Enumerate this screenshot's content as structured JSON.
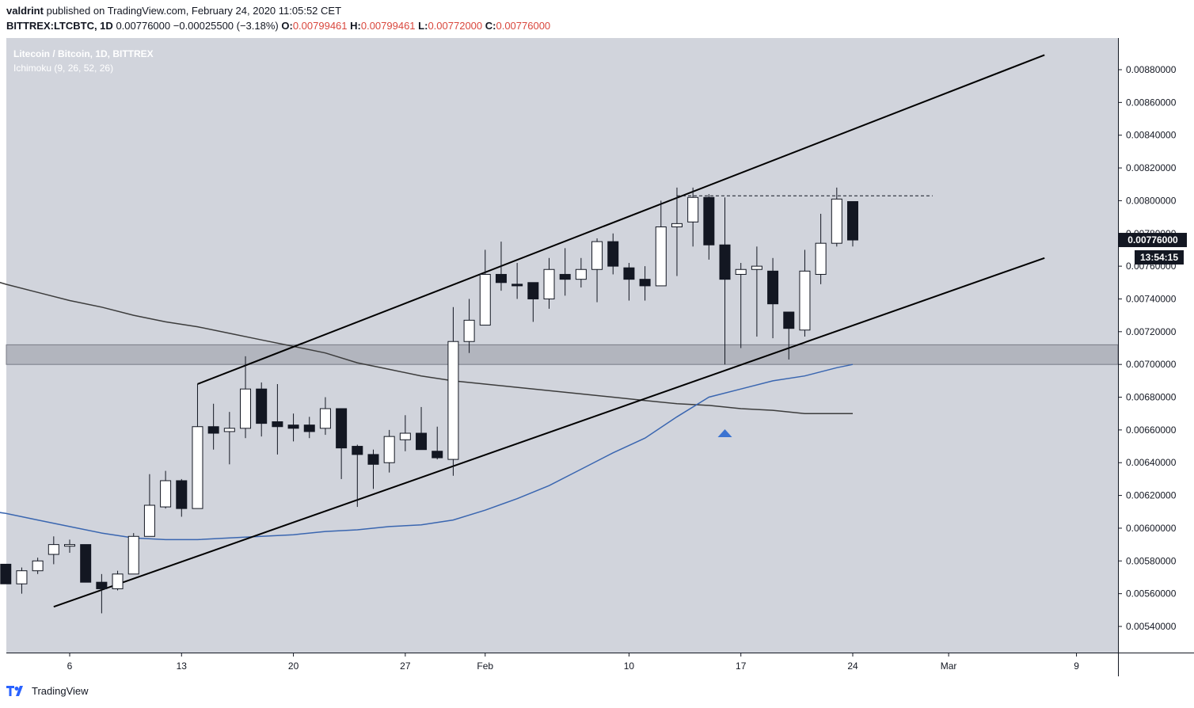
{
  "header": {
    "author": "valdrint",
    "published_text": "published on TradingView.com, February 24, 2020 11:05:52 CET",
    "symbol": "BITTREX:LTCBTC, 1D",
    "last": "0.00776000",
    "change": "−0.00025500 (−3.18%)",
    "o_label": "O:",
    "o_value": "0.00799461",
    "h_label": "H:",
    "h_value": "0.00799461",
    "l_label": "L:",
    "l_value": "0.00772000",
    "c_label": "C:",
    "c_value": "0.00776000"
  },
  "legend": {
    "title": "Litecoin / Bitcoin, 1D, BITTREX",
    "indicator": "Ichimoku (9, 26, 52, 26)"
  },
  "price_label": "0.00776000",
  "countdown": "13:54:15",
  "footer": {
    "brand": "TradingView"
  },
  "colors": {
    "background": "#d1d4dc",
    "bull_candle": "#ffffff",
    "bear_candle": "#131722",
    "ma_gray": "#3c3c3c",
    "ma_blue": "#3a66b0",
    "zone": "#b2b5be",
    "arrow": "#3b73d1"
  },
  "chart_data": {
    "type": "candlestick",
    "symbol": "LTCBTC",
    "ylim": [
      0.0053,
      0.009
    ],
    "y_ticks": [
      0.0054,
      0.0056,
      0.0058,
      0.006,
      0.0062,
      0.0064,
      0.0066,
      0.0068,
      0.007,
      0.0072,
      0.0074,
      0.0076,
      0.0078,
      0.008,
      0.0082,
      0.0084,
      0.0086,
      0.0088
    ],
    "y_tick_labels": [
      "0.00540000",
      "0.00560000",
      "0.00580000",
      "0.00600000",
      "0.00620000",
      "0.00640000",
      "0.00660000",
      "0.00680000",
      "0.00700000",
      "0.00720000",
      "0.00740000",
      "0.00760000",
      "0.00780000",
      "0.00800000",
      "0.00820000",
      "0.00840000",
      "0.00860000",
      "0.00880000"
    ],
    "x_ticks": [
      {
        "label": "6",
        "day": 6
      },
      {
        "label": "13",
        "day": 13
      },
      {
        "label": "20",
        "day": 20
      },
      {
        "label": "27",
        "day": 27
      },
      {
        "label": "Feb",
        "day": 32
      },
      {
        "label": "10",
        "day": 41
      },
      {
        "label": "17",
        "day": 48
      },
      {
        "label": "24",
        "day": 55
      },
      {
        "label": "Mar",
        "day": 61
      },
      {
        "label": "9",
        "day": 69
      }
    ],
    "candles": [
      {
        "day": 2,
        "o": 0.00578,
        "h": 0.00578,
        "l": 0.00566,
        "c": 0.00566
      },
      {
        "day": 3,
        "o": 0.00566,
        "h": 0.00576,
        "l": 0.0056,
        "c": 0.00574
      },
      {
        "day": 4,
        "o": 0.00574,
        "h": 0.00582,
        "l": 0.00572,
        "c": 0.0058
      },
      {
        "day": 5,
        "o": 0.00584,
        "h": 0.00595,
        "l": 0.00578,
        "c": 0.0059
      },
      {
        "day": 6,
        "o": 0.00589,
        "h": 0.00593,
        "l": 0.00585,
        "c": 0.0059
      },
      {
        "day": 7,
        "o": 0.0059,
        "h": 0.0059,
        "l": 0.00567,
        "c": 0.00567
      },
      {
        "day": 8,
        "o": 0.00567,
        "h": 0.00572,
        "l": 0.00548,
        "c": 0.00563
      },
      {
        "day": 9,
        "o": 0.00563,
        "h": 0.00574,
        "l": 0.00562,
        "c": 0.00572
      },
      {
        "day": 10,
        "o": 0.00572,
        "h": 0.00597,
        "l": 0.00572,
        "c": 0.00595
      },
      {
        "day": 11,
        "o": 0.00595,
        "h": 0.00633,
        "l": 0.00595,
        "c": 0.00614
      },
      {
        "day": 12,
        "o": 0.00613,
        "h": 0.00635,
        "l": 0.00612,
        "c": 0.00629
      },
      {
        "day": 13,
        "o": 0.00629,
        "h": 0.0063,
        "l": 0.00607,
        "c": 0.00612
      },
      {
        "day": 14,
        "o": 0.00612,
        "h": 0.00688,
        "l": 0.00612,
        "c": 0.00662
      },
      {
        "day": 15,
        "o": 0.00662,
        "h": 0.00676,
        "l": 0.00648,
        "c": 0.00658
      },
      {
        "day": 16,
        "o": 0.00659,
        "h": 0.00671,
        "l": 0.00639,
        "c": 0.00661
      },
      {
        "day": 17,
        "o": 0.00661,
        "h": 0.00705,
        "l": 0.00655,
        "c": 0.00685
      },
      {
        "day": 18,
        "o": 0.00685,
        "h": 0.00689,
        "l": 0.00656,
        "c": 0.00664
      },
      {
        "day": 19,
        "o": 0.00665,
        "h": 0.00688,
        "l": 0.00645,
        "c": 0.00662
      },
      {
        "day": 20,
        "o": 0.00663,
        "h": 0.0067,
        "l": 0.00653,
        "c": 0.00661
      },
      {
        "day": 21,
        "o": 0.00663,
        "h": 0.00668,
        "l": 0.00655,
        "c": 0.00659
      },
      {
        "day": 22,
        "o": 0.00661,
        "h": 0.0068,
        "l": 0.00657,
        "c": 0.00673
      },
      {
        "day": 23,
        "o": 0.00673,
        "h": 0.00673,
        "l": 0.0063,
        "c": 0.00649
      },
      {
        "day": 24,
        "o": 0.0065,
        "h": 0.00651,
        "l": 0.00613,
        "c": 0.00645
      },
      {
        "day": 25,
        "o": 0.00645,
        "h": 0.00648,
        "l": 0.00624,
        "c": 0.00639
      },
      {
        "day": 26,
        "o": 0.0064,
        "h": 0.0066,
        "l": 0.00634,
        "c": 0.00656
      },
      {
        "day": 27,
        "o": 0.00654,
        "h": 0.00669,
        "l": 0.00647,
        "c": 0.00658
      },
      {
        "day": 28,
        "o": 0.00658,
        "h": 0.00674,
        "l": 0.00648,
        "c": 0.00648
      },
      {
        "day": 29,
        "o": 0.00647,
        "h": 0.00662,
        "l": 0.00642,
        "c": 0.00643
      },
      {
        "day": 30,
        "o": 0.00642,
        "h": 0.00735,
        "l": 0.00632,
        "c": 0.00714
      },
      {
        "day": 31,
        "o": 0.00714,
        "h": 0.0074,
        "l": 0.00707,
        "c": 0.00727
      },
      {
        "day": 32,
        "o": 0.00724,
        "h": 0.0077,
        "l": 0.00724,
        "c": 0.00755
      },
      {
        "day": 33,
        "o": 0.00755,
        "h": 0.00775,
        "l": 0.00745,
        "c": 0.0075
      },
      {
        "day": 34,
        "o": 0.00749,
        "h": 0.00762,
        "l": 0.0074,
        "c": 0.00748
      },
      {
        "day": 35,
        "o": 0.0075,
        "h": 0.0075,
        "l": 0.00726,
        "c": 0.0074
      },
      {
        "day": 36,
        "o": 0.0074,
        "h": 0.00765,
        "l": 0.00734,
        "c": 0.00758
      },
      {
        "day": 37,
        "o": 0.00755,
        "h": 0.00771,
        "l": 0.00742,
        "c": 0.00752
      },
      {
        "day": 38,
        "o": 0.00752,
        "h": 0.00765,
        "l": 0.00747,
        "c": 0.00758
      },
      {
        "day": 39,
        "o": 0.00758,
        "h": 0.00777,
        "l": 0.00738,
        "c": 0.00775
      },
      {
        "day": 40,
        "o": 0.00775,
        "h": 0.0078,
        "l": 0.00755,
        "c": 0.0076
      },
      {
        "day": 41,
        "o": 0.00759,
        "h": 0.00762,
        "l": 0.00739,
        "c": 0.00752
      },
      {
        "day": 42,
        "o": 0.00752,
        "h": 0.0076,
        "l": 0.00739,
        "c": 0.00748
      },
      {
        "day": 43,
        "o": 0.00748,
        "h": 0.008,
        "l": 0.00748,
        "c": 0.00784
      },
      {
        "day": 44,
        "o": 0.00784,
        "h": 0.00808,
        "l": 0.00754,
        "c": 0.00786
      },
      {
        "day": 45,
        "o": 0.00787,
        "h": 0.00808,
        "l": 0.00772,
        "c": 0.00802
      },
      {
        "day": 46,
        "o": 0.00802,
        "h": 0.00804,
        "l": 0.00764,
        "c": 0.00773
      },
      {
        "day": 47,
        "o": 0.00773,
        "h": 0.00802,
        "l": 0.007,
        "c": 0.00752
      },
      {
        "day": 48,
        "o": 0.00755,
        "h": 0.00762,
        "l": 0.0071,
        "c": 0.00758
      },
      {
        "day": 49,
        "o": 0.00758,
        "h": 0.00772,
        "l": 0.00717,
        "c": 0.0076
      },
      {
        "day": 50,
        "o": 0.00757,
        "h": 0.00765,
        "l": 0.00716,
        "c": 0.00737
      },
      {
        "day": 51,
        "o": 0.00732,
        "h": 0.00732,
        "l": 0.00703,
        "c": 0.00722
      },
      {
        "day": 52,
        "o": 0.00721,
        "h": 0.0077,
        "l": 0.00717,
        "c": 0.00757
      },
      {
        "day": 53,
        "o": 0.00755,
        "h": 0.00792,
        "l": 0.00749,
        "c": 0.00774
      },
      {
        "day": 54,
        "o": 0.00774,
        "h": 0.00808,
        "l": 0.00772,
        "c": 0.00801
      },
      {
        "day": 55,
        "o": 0.00799461,
        "h": 0.00799461,
        "l": 0.00772,
        "c": 0.00776
      }
    ],
    "ma_gray": {
      "day": [
        0,
        2,
        4,
        6,
        8,
        10,
        12,
        14,
        16,
        18,
        20,
        22,
        24,
        26,
        28,
        30,
        32,
        34,
        36,
        38,
        40,
        42,
        44,
        46,
        48,
        50,
        52,
        54,
        55
      ],
      "value": [
        0.00755,
        0.00749,
        0.00744,
        0.00739,
        0.00735,
        0.0073,
        0.00726,
        0.00723,
        0.00719,
        0.00715,
        0.00711,
        0.00707,
        0.00701,
        0.00697,
        0.00693,
        0.0069,
        0.00688,
        0.00686,
        0.00684,
        0.00682,
        0.0068,
        0.00678,
        0.00676,
        0.00675,
        0.00673,
        0.00672,
        0.0067,
        0.0067,
        0.0067
      ]
    },
    "ma_blue": {
      "day": [
        0,
        2,
        4,
        6,
        8,
        10,
        12,
        14,
        16,
        18,
        20,
        22,
        24,
        26,
        28,
        30,
        32,
        34,
        36,
        38,
        40,
        42,
        44,
        46,
        48,
        50,
        52,
        54,
        55
      ],
      "value": [
        0.00612,
        0.00609,
        0.00605,
        0.00601,
        0.00597,
        0.00594,
        0.00593,
        0.00593,
        0.00594,
        0.00595,
        0.00596,
        0.00598,
        0.00599,
        0.00601,
        0.00602,
        0.00605,
        0.00611,
        0.00618,
        0.00626,
        0.00636,
        0.00646,
        0.00655,
        0.00668,
        0.0068,
        0.00685,
        0.0069,
        0.00693,
        0.00698,
        0.007
      ]
    },
    "channel_upper": [
      {
        "day": 14,
        "price": 0.00688
      },
      {
        "day": 67,
        "price": 0.00889
      }
    ],
    "channel_lower": [
      {
        "day": 5,
        "price": 0.00552
      },
      {
        "day": 67,
        "price": 0.00765
      }
    ],
    "support_zone": [
      0.007,
      0.00712
    ],
    "resistance_dashed": {
      "from_day": 44,
      "to_day": 60,
      "price": 0.00803
    },
    "arrow": {
      "day": 47,
      "price": 0.00658
    }
  }
}
